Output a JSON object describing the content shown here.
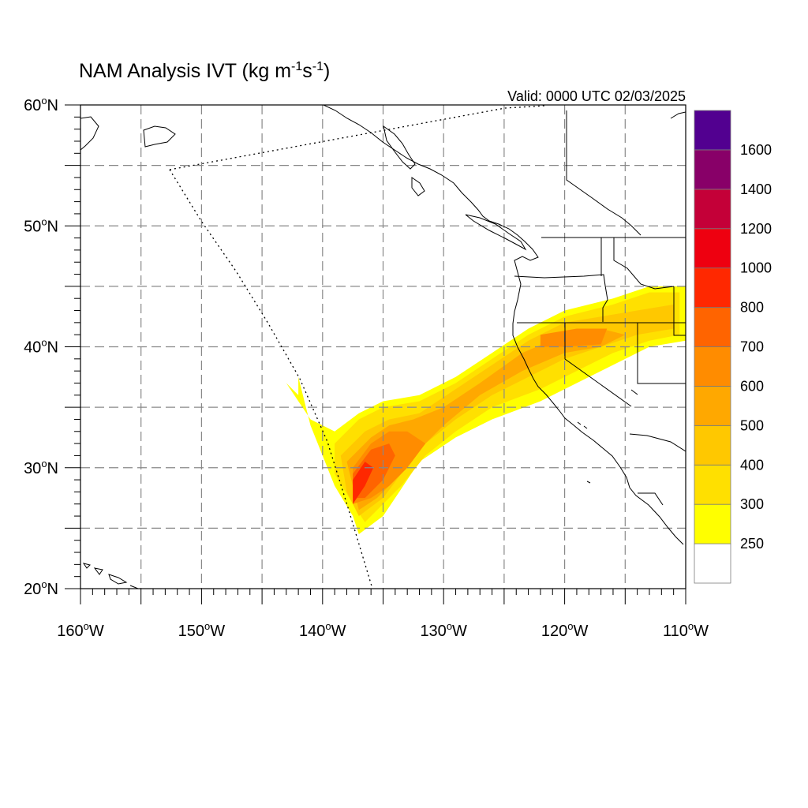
{
  "title": {
    "main": "NAM Analysis IVT (kg m",
    "sup1": "-1",
    "mid": "s",
    "sup2": "-1",
    "end": ")"
  },
  "valid": "Valid: 0000 UTC 02/03/2025",
  "map": {
    "lon_range": [
      -160,
      -110
    ],
    "lat_range": [
      20,
      60
    ],
    "grid_lon_step": 5,
    "grid_lat_step": 5,
    "lat_labels": [
      "20",
      "30",
      "40",
      "50",
      "60"
    ],
    "lon_labels": [
      "160",
      "150",
      "140",
      "130",
      "120",
      "110"
    ],
    "lat_suffix": "N",
    "lon_suffix": "W",
    "colors": {
      "coast": "#000000",
      "grid": "#888888"
    }
  },
  "colorbar": {
    "labels": [
      "250",
      "300",
      "400",
      "500",
      "600",
      "700",
      "800",
      "1000",
      "1200",
      "1400",
      "1600"
    ],
    "colors": [
      "#ffffff",
      "#ffff00",
      "#ffe000",
      "#ffc800",
      "#ffa800",
      "#ff8c00",
      "#ff6400",
      "#ff2800",
      "#ee0010",
      "#c40038",
      "#880068",
      "#520090"
    ]
  },
  "chart_data": {
    "type": "heatmap",
    "variable": "IVT",
    "units": "kg m-1 s-1",
    "levels": [
      250,
      300,
      400,
      500,
      600,
      700,
      800,
      1000,
      1200,
      1400,
      1600
    ],
    "features": [
      {
        "level": 250,
        "polygon": [
          [
            -142,
            37.5
          ],
          [
            -142,
            36
          ],
          [
            -143,
            37
          ],
          [
            -141,
            34
          ],
          [
            -139,
            33
          ],
          [
            -137,
            34.5
          ],
          [
            -135,
            35.5
          ],
          [
            -132,
            36
          ],
          [
            -129,
            37.5
          ],
          [
            -126,
            39.5
          ],
          [
            -123,
            41.5
          ],
          [
            -120,
            43
          ],
          [
            -116,
            44
          ],
          [
            -113,
            45
          ],
          [
            -110,
            45
          ],
          [
            -110,
            40.5
          ],
          [
            -113,
            40
          ],
          [
            -116,
            38.5
          ],
          [
            -119,
            37
          ],
          [
            -122,
            35.5
          ],
          [
            -126,
            34
          ],
          [
            -129,
            32.5
          ],
          [
            -132,
            30.5
          ],
          [
            -134,
            27.5
          ],
          [
            -135,
            26
          ],
          [
            -137,
            24.5
          ],
          [
            -137.5,
            26
          ],
          [
            -139,
            28.5
          ],
          [
            -140,
            31
          ],
          [
            -141,
            33.5
          ]
        ]
      },
      {
        "level": 300,
        "polygon": [
          [
            -139,
            32
          ],
          [
            -137,
            34
          ],
          [
            -135,
            35
          ],
          [
            -132,
            35.5
          ],
          [
            -129,
            37
          ],
          [
            -126,
            39
          ],
          [
            -123,
            41
          ],
          [
            -120,
            42.5
          ],
          [
            -116,
            43.5
          ],
          [
            -113,
            44.5
          ],
          [
            -110.5,
            44.5
          ],
          [
            -110.5,
            41
          ],
          [
            -113,
            40.5
          ],
          [
            -116,
            39.5
          ],
          [
            -119,
            38
          ],
          [
            -122,
            36.5
          ],
          [
            -126,
            35
          ],
          [
            -129,
            33
          ],
          [
            -131.5,
            31
          ],
          [
            -133.5,
            28.5
          ],
          [
            -135,
            27
          ],
          [
            -136.5,
            25.5
          ],
          [
            -137.5,
            27
          ],
          [
            -139,
            29.5
          ]
        ]
      },
      {
        "level": 400,
        "polygon": [
          [
            -138.5,
            31
          ],
          [
            -136.5,
            33
          ],
          [
            -134.5,
            34
          ],
          [
            -132,
            34.5
          ],
          [
            -129,
            36.5
          ],
          [
            -126,
            38.5
          ],
          [
            -123,
            40.5
          ],
          [
            -120,
            42
          ],
          [
            -117,
            42.5
          ],
          [
            -114,
            43
          ],
          [
            -111,
            43.5
          ],
          [
            -111,
            41.5
          ],
          [
            -114,
            41
          ],
          [
            -117,
            40
          ],
          [
            -120,
            39
          ],
          [
            -123,
            37.5
          ],
          [
            -126,
            36
          ],
          [
            -129,
            34
          ],
          [
            -131.5,
            32
          ],
          [
            -133.5,
            29.5
          ],
          [
            -135,
            27.5
          ],
          [
            -137,
            26
          ],
          [
            -138,
            28
          ]
        ]
      },
      {
        "level": 500,
        "polygon": [
          [
            -138,
            30.5
          ],
          [
            -136,
            32.5
          ],
          [
            -134.5,
            33.5
          ],
          [
            -132.5,
            34
          ],
          [
            -130,
            35
          ],
          [
            -127,
            37
          ],
          [
            -123.5,
            39.5
          ],
          [
            -120,
            41
          ],
          [
            -117,
            41.5
          ],
          [
            -115,
            41
          ],
          [
            -117,
            40
          ],
          [
            -120,
            39.5
          ],
          [
            -123.5,
            38
          ],
          [
            -127,
            36
          ],
          [
            -130,
            33.5
          ],
          [
            -132.5,
            31
          ],
          [
            -134,
            29
          ],
          [
            -135.5,
            27.5
          ],
          [
            -137,
            26.5
          ]
        ]
      },
      {
        "level": 600,
        "polygon": [
          [
            -137.5,
            30
          ],
          [
            -136,
            32
          ],
          [
            -134.5,
            33
          ],
          [
            -133,
            33
          ],
          [
            -131.5,
            32
          ],
          [
            -133,
            30
          ],
          [
            -134.5,
            28.5
          ],
          [
            -136,
            27.5
          ],
          [
            -137.5,
            27
          ]
        ]
      },
      {
        "level": 600,
        "polygon": [
          [
            -122,
            41
          ],
          [
            -119,
            41.5
          ],
          [
            -116.5,
            41.5
          ],
          [
            -117,
            40.2
          ],
          [
            -120,
            40
          ],
          [
            -122,
            40
          ]
        ]
      },
      {
        "level": 700,
        "polygon": [
          [
            -137.5,
            29.5
          ],
          [
            -136,
            31.5
          ],
          [
            -134.5,
            32
          ],
          [
            -134,
            31
          ],
          [
            -135,
            29
          ],
          [
            -136.5,
            27.5
          ],
          [
            -137.5,
            27.5
          ]
        ]
      },
      {
        "level": 800,
        "polygon": [
          [
            -137.5,
            29
          ],
          [
            -136.5,
            30.5
          ],
          [
            -135.8,
            30
          ],
          [
            -136.5,
            28.5
          ],
          [
            -137.5,
            27
          ]
        ]
      }
    ]
  }
}
